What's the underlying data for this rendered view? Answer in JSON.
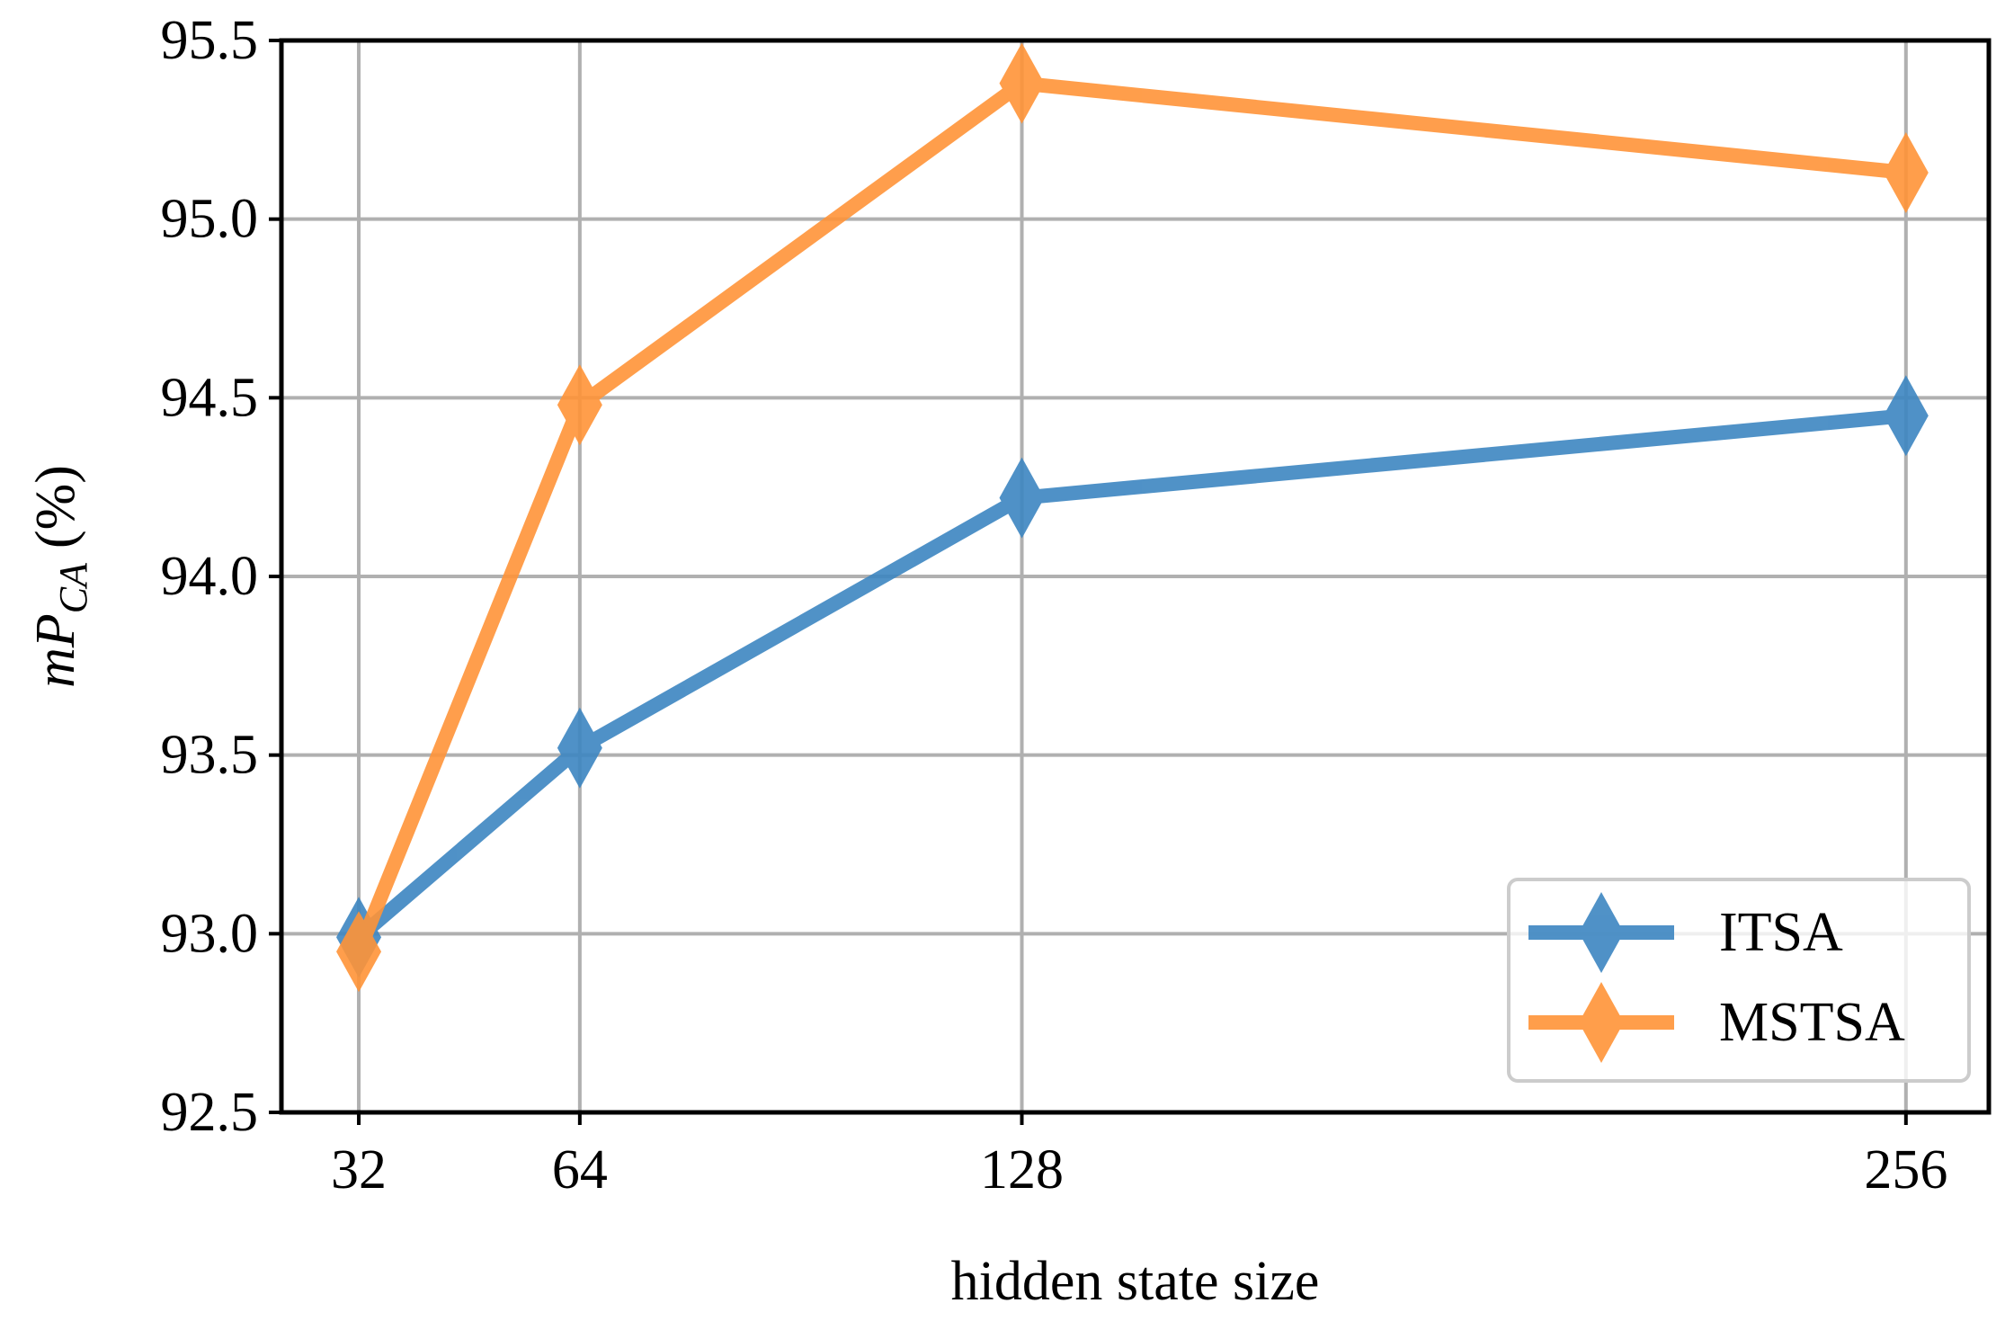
{
  "chart_data": {
    "type": "line",
    "title": "",
    "xlabel": "hidden state size",
    "ylabel": {
      "math": "mP",
      "subscript": "CA",
      "suffix": "(%)"
    },
    "x": [
      32,
      64,
      128,
      256
    ],
    "x_tick_labels": [
      "32",
      "64",
      "128",
      "256"
    ],
    "y_ticks": [
      92.5,
      93.0,
      93.5,
      94.0,
      94.5,
      95.0,
      95.5
    ],
    "y_tick_labels": [
      "92.5",
      "93.0",
      "93.5",
      "94.0",
      "94.5",
      "95.0",
      "95.5"
    ],
    "xlim": [
      20.8,
      268
    ],
    "ylim": [
      92.5,
      95.5
    ],
    "grid": true,
    "legend_position": "lower-right",
    "marker": "thin-diamond",
    "series": [
      {
        "name": "ITSA",
        "color": "#3d86c1",
        "values": [
          92.99,
          93.52,
          94.22,
          94.45
        ]
      },
      {
        "name": "MSTSA",
        "color": "#ff9438",
        "values": [
          92.95,
          94.48,
          95.38,
          95.13
        ]
      }
    ]
  }
}
